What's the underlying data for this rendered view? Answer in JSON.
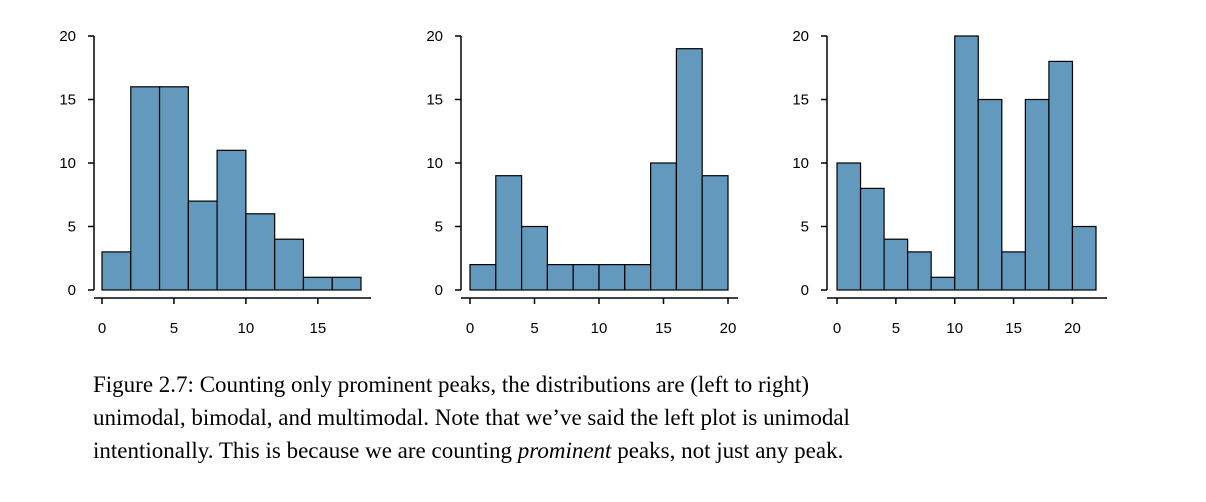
{
  "chart_data": [
    {
      "type": "bar",
      "bin_edges": [
        0,
        2,
        4,
        6,
        8,
        10,
        12,
        14,
        16,
        18
      ],
      "values": [
        3,
        16,
        16,
        7,
        11,
        6,
        4,
        1,
        1
      ],
      "x_ticks": [
        0,
        5,
        10,
        15
      ],
      "y_ticks": [
        0,
        5,
        10,
        15,
        20
      ],
      "xlim": [
        0,
        18
      ],
      "ylim": [
        0,
        20
      ],
      "xlabel": "",
      "ylabel": "",
      "bar_color": "#6399bc",
      "grid": false
    },
    {
      "type": "bar",
      "bin_edges": [
        0,
        2,
        4,
        6,
        8,
        10,
        12,
        14,
        16,
        18,
        20
      ],
      "values": [
        2,
        9,
        5,
        2,
        2,
        2,
        2,
        10,
        19,
        9
      ],
      "x_ticks": [
        0,
        5,
        10,
        15,
        20
      ],
      "y_ticks": [
        0,
        5,
        10,
        15,
        20
      ],
      "xlim": [
        0,
        20
      ],
      "ylim": [
        0,
        20
      ],
      "xlabel": "",
      "ylabel": "",
      "bar_color": "#6399bc",
      "grid": false
    },
    {
      "type": "bar",
      "bin_edges": [
        0,
        2,
        4,
        6,
        8,
        10,
        12,
        14,
        16,
        18,
        20,
        22
      ],
      "values": [
        10,
        8,
        4,
        3,
        1,
        20,
        15,
        3,
        15,
        18,
        5
      ],
      "x_ticks": [
        0,
        5,
        10,
        15,
        20
      ],
      "y_ticks": [
        0,
        5,
        10,
        15,
        20
      ],
      "xlim": [
        0,
        22
      ],
      "ylim": [
        0,
        20
      ],
      "xlabel": "",
      "ylabel": "",
      "bar_color": "#6399bc",
      "grid": false
    }
  ],
  "caption": {
    "line1": "Figure 2.7: Counting only prominent peaks, the distributions are (left to right)",
    "line2": "unimodal, bimodal, and multimodal. Note that we’ve said the left plot is unimodal",
    "line3_before": "intentionally. This is because we are counting ",
    "line3_emph": "prominent",
    "line3_after": " peaks, not just any peak."
  }
}
